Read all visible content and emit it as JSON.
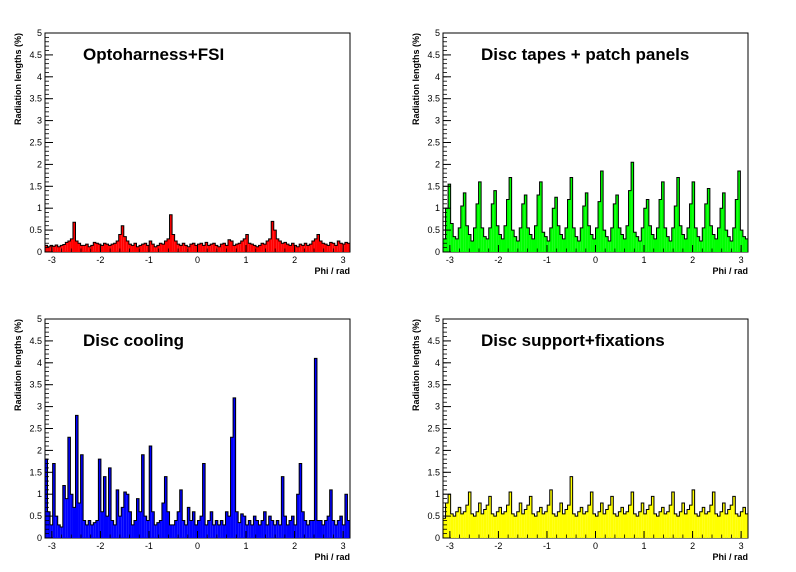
{
  "chart_data": [
    {
      "type": "bar",
      "title": "Optoharness+FSI",
      "xlabel": "Phi / rad",
      "ylabel": "Radiation lengths (%)",
      "xlim": [
        -3.1416,
        3.1416
      ],
      "ylim": [
        0,
        5
      ],
      "xticks": [
        "-3",
        "-2",
        "-1",
        "0",
        "1",
        "2",
        "3"
      ],
      "yticks": [
        "0",
        "0.5",
        "1",
        "1.5",
        "2",
        "2.5",
        "3",
        "3.5",
        "4",
        "4.5",
        "5"
      ],
      "fill": "#ff0000",
      "values": [
        0.15,
        0.12,
        0.15,
        0.13,
        0.16,
        0.12,
        0.15,
        0.17,
        0.22,
        0.25,
        0.3,
        0.68,
        0.25,
        0.2,
        0.15,
        0.15,
        0.18,
        0.12,
        0.15,
        0.22,
        0.2,
        0.18,
        0.15,
        0.2,
        0.18,
        0.15,
        0.18,
        0.2,
        0.25,
        0.4,
        0.6,
        0.35,
        0.25,
        0.18,
        0.15,
        0.2,
        0.12,
        0.15,
        0.18,
        0.2,
        0.15,
        0.25,
        0.18,
        0.12,
        0.15,
        0.2,
        0.18,
        0.25,
        0.3,
        0.85,
        0.4,
        0.25,
        0.18,
        0.15,
        0.2,
        0.15,
        0.12,
        0.18,
        0.2,
        0.15,
        0.18,
        0.2,
        0.15,
        0.22,
        0.15,
        0.18,
        0.2,
        0.15,
        0.12,
        0.18,
        0.2,
        0.15,
        0.28,
        0.25,
        0.15,
        0.18,
        0.2,
        0.25,
        0.3,
        0.4,
        0.2,
        0.18,
        0.15,
        0.12,
        0.15,
        0.2,
        0.18,
        0.25,
        0.3,
        0.7,
        0.5,
        0.3,
        0.25,
        0.2,
        0.22,
        0.18,
        0.15,
        0.2,
        0.15,
        0.12,
        0.18,
        0.15,
        0.2,
        0.15,
        0.18,
        0.25,
        0.3,
        0.4,
        0.25,
        0.2,
        0.18,
        0.15,
        0.22,
        0.2,
        0.15,
        0.25,
        0.2,
        0.18,
        0.22,
        0.2
      ]
    },
    {
      "type": "bar",
      "title": "Disc tapes + patch panels",
      "xlabel": "Phi / rad",
      "ylabel": "Radiation lengths (%)",
      "xlim": [
        -3.1416,
        3.1416
      ],
      "ylim": [
        0,
        5
      ],
      "xticks": [
        "-3",
        "-2",
        "-1",
        "0",
        "1",
        "2",
        "3"
      ],
      "yticks": [
        "0",
        "0.5",
        "1",
        "1.5",
        "2",
        "2.5",
        "3",
        "3.5",
        "4",
        "4.5",
        "5"
      ],
      "fill": "#00ff00",
      "values": [
        0.3,
        1.0,
        1.55,
        0.65,
        0.35,
        0.3,
        0.55,
        1.05,
        1.35,
        0.6,
        0.4,
        0.25,
        0.55,
        1.1,
        1.6,
        0.55,
        0.35,
        0.3,
        0.55,
        1.1,
        1.4,
        0.6,
        0.4,
        0.3,
        0.6,
        1.2,
        1.7,
        0.5,
        0.35,
        0.25,
        0.55,
        1.1,
        1.3,
        0.55,
        0.4,
        0.3,
        0.6,
        1.3,
        1.6,
        0.45,
        0.35,
        0.25,
        0.55,
        1.0,
        1.25,
        0.6,
        0.4,
        0.3,
        0.55,
        1.2,
        1.7,
        0.55,
        0.35,
        0.25,
        0.55,
        1.05,
        1.35,
        0.6,
        0.4,
        0.3,
        0.55,
        1.15,
        1.85,
        0.5,
        0.35,
        0.25,
        0.55,
        1.1,
        1.3,
        0.55,
        0.4,
        0.3,
        0.6,
        1.4,
        2.05,
        0.45,
        0.35,
        0.25,
        0.55,
        1.0,
        1.2,
        0.6,
        0.4,
        0.3,
        0.55,
        1.2,
        1.6,
        0.55,
        0.35,
        0.25,
        0.55,
        1.05,
        1.7,
        0.6,
        0.4,
        0.3,
        0.55,
        1.1,
        1.6,
        0.55,
        0.35,
        0.25,
        0.55,
        1.1,
        1.45,
        0.6,
        0.4,
        0.3,
        0.55,
        1.0,
        1.35,
        0.5,
        0.35,
        0.25,
        0.55,
        1.2,
        1.85,
        0.5,
        0.35,
        0.3
      ]
    },
    {
      "type": "bar",
      "title": "Disc cooling",
      "xlabel": "Phi / rad",
      "ylabel": "Radiation lengths (%)",
      "xlim": [
        -3.1416,
        3.1416
      ],
      "ylim": [
        0,
        5
      ],
      "xticks": [
        "-3",
        "-2",
        "-1",
        "0",
        "1",
        "2",
        "3"
      ],
      "yticks": [
        "0",
        "0.5",
        "1",
        "1.5",
        "2",
        "2.5",
        "3",
        "3.5",
        "4",
        "4.5",
        "5"
      ],
      "fill": "#0000ff",
      "values": [
        1.8,
        0.6,
        0.3,
        1.7,
        0.5,
        0.3,
        0.25,
        1.2,
        0.9,
        2.3,
        1.0,
        0.7,
        2.8,
        0.8,
        1.9,
        0.4,
        0.3,
        0.4,
        0.3,
        0.35,
        0.4,
        1.8,
        0.6,
        1.4,
        0.5,
        1.6,
        0.4,
        0.3,
        1.1,
        0.5,
        0.7,
        1.05,
        1.0,
        0.6,
        0.3,
        0.4,
        0.9,
        0.6,
        1.9,
        0.5,
        0.4,
        2.1,
        0.6,
        0.3,
        0.35,
        0.4,
        0.8,
        1.4,
        0.6,
        0.3,
        0.3,
        0.4,
        0.6,
        1.1,
        0.4,
        0.3,
        0.7,
        0.4,
        0.6,
        0.3,
        0.4,
        0.5,
        1.7,
        0.3,
        0.4,
        0.6,
        0.3,
        0.4,
        0.3,
        0.4,
        0.3,
        0.6,
        0.5,
        2.3,
        3.2,
        0.6,
        0.35,
        0.55,
        0.5,
        0.3,
        0.4,
        0.3,
        0.5,
        0.4,
        0.3,
        0.4,
        0.6,
        0.3,
        0.5,
        0.4,
        0.3,
        0.4,
        0.3,
        1.4,
        0.5,
        0.3,
        0.4,
        0.5,
        0.3,
        1.0,
        1.7,
        0.6,
        0.4,
        0.3,
        0.4,
        0.4,
        4.1,
        0.4,
        0.4,
        0.3,
        0.4,
        0.5,
        1.1,
        0.4,
        0.3,
        0.4,
        0.5,
        0.3,
        1.0,
        0.4
      ]
    },
    {
      "type": "bar",
      "title": "Disc support+fixations",
      "xlabel": "Phi / rad",
      "ylabel": "Radiation lengths (%)",
      "xlim": [
        -3.1416,
        3.1416
      ],
      "ylim": [
        0,
        5
      ],
      "xticks": [
        "-3",
        "-2",
        "-1",
        "0",
        "1",
        "2",
        "3"
      ],
      "yticks": [
        "0",
        "0.5",
        "1",
        "1.5",
        "2",
        "2.5",
        "3",
        "3.5",
        "4",
        "4.5",
        "5"
      ],
      "fill": "#ffff00",
      "values": [
        0.45,
        0.8,
        1.0,
        0.55,
        0.5,
        0.6,
        0.7,
        0.55,
        0.6,
        0.75,
        1.05,
        0.55,
        0.5,
        0.6,
        0.8,
        0.55,
        0.65,
        0.75,
        0.95,
        0.55,
        0.5,
        0.6,
        0.7,
        0.55,
        0.6,
        0.75,
        1.05,
        0.55,
        0.5,
        0.6,
        0.8,
        0.55,
        0.65,
        0.75,
        0.95,
        0.55,
        0.5,
        0.6,
        0.7,
        0.55,
        0.6,
        0.75,
        1.1,
        0.55,
        0.5,
        0.6,
        0.8,
        0.55,
        0.65,
        0.75,
        1.4,
        0.55,
        0.5,
        0.6,
        0.7,
        0.55,
        0.6,
        0.75,
        1.05,
        0.55,
        0.5,
        0.6,
        0.8,
        0.55,
        0.65,
        0.75,
        0.95,
        0.55,
        0.5,
        0.6,
        0.7,
        0.55,
        0.6,
        0.75,
        1.05,
        0.55,
        0.5,
        0.6,
        0.8,
        0.55,
        0.65,
        0.75,
        0.95,
        0.55,
        0.5,
        0.6,
        0.7,
        0.55,
        0.6,
        0.75,
        1.05,
        0.55,
        0.5,
        0.6,
        0.8,
        0.55,
        0.65,
        0.75,
        1.1,
        0.55,
        0.5,
        0.6,
        0.7,
        0.55,
        0.6,
        0.75,
        1.05,
        0.55,
        0.5,
        0.6,
        0.8,
        0.55,
        0.65,
        0.75,
        0.95,
        0.55,
        0.5,
        0.6,
        0.7,
        0.55
      ]
    }
  ]
}
